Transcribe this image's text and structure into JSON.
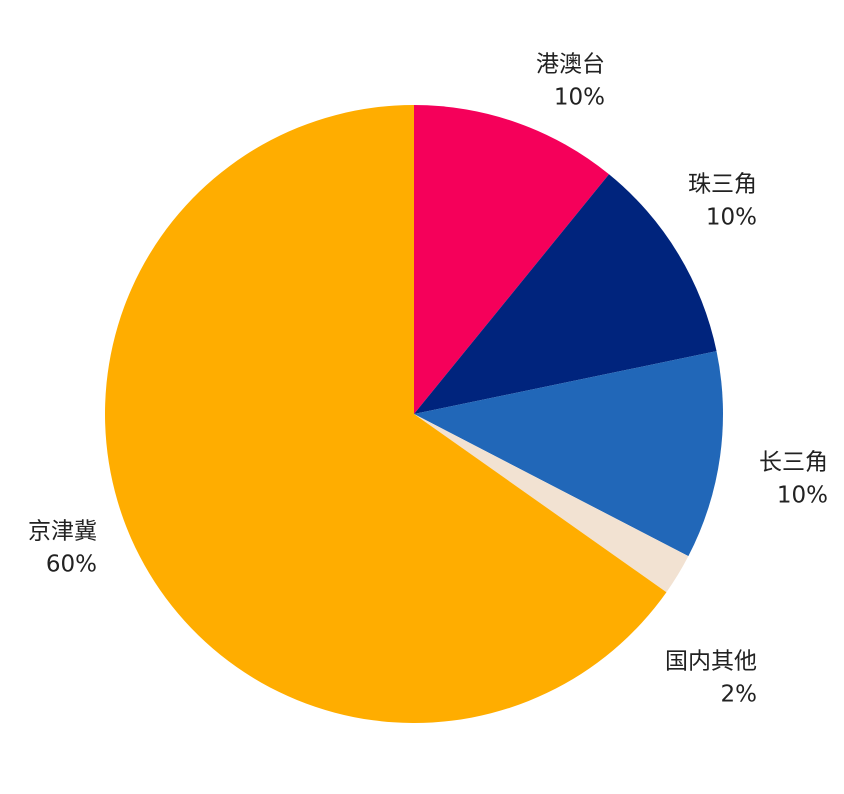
{
  "chart_data": {
    "type": "pie",
    "categories": [
      "港澳台",
      "珠三角",
      "长三角",
      "国内其他",
      "京津冀"
    ],
    "values": [
      10,
      10,
      10,
      2,
      60
    ],
    "value_labels": [
      "10%",
      "10%",
      "10%",
      "2%",
      "60%"
    ],
    "colors": [
      "#f5005a",
      "#00247d",
      "#2167b8",
      "#f2e2d2",
      "#ffad00"
    ]
  }
}
